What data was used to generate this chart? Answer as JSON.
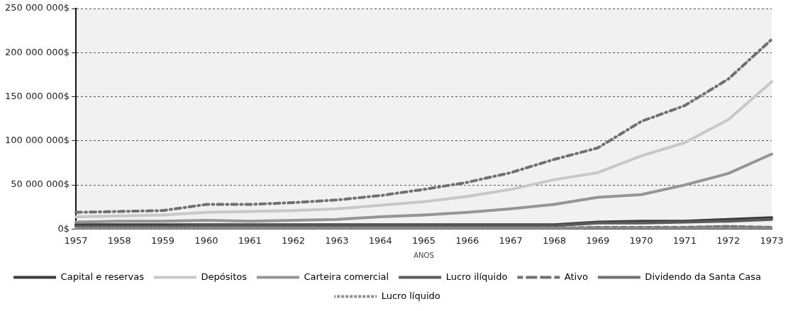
{
  "chart_data": {
    "type": "line",
    "xlabel": "ANOS",
    "categories": [
      "1957",
      "1958",
      "1959",
      "1960",
      "1961",
      "1962",
      "1963",
      "1964",
      "1965",
      "1966",
      "1967",
      "1968",
      "1969",
      "1970",
      "1971",
      "1972",
      "1973"
    ],
    "series": [
      {
        "name": "Capital e reservas",
        "color": "#3c3c3c",
        "line_style": "solid",
        "values": [
          5000000,
          5000000,
          5000000,
          5000000,
          5000000,
          5000000,
          5000000,
          5000000,
          5000000,
          5000000,
          5000000,
          5000000,
          8000000,
          9000000,
          9000000,
          11000000,
          13000000
        ]
      },
      {
        "name": "Depósitos",
        "color": "#c8c8c8",
        "line_style": "solid",
        "values": [
          14000000,
          15000000,
          16000000,
          19000000,
          20000000,
          21000000,
          23000000,
          27000000,
          31000000,
          37000000,
          45000000,
          56000000,
          64000000,
          83000000,
          98000000,
          124000000,
          167000000
        ]
      },
      {
        "name": "Carteira comercial",
        "color": "#959595",
        "line_style": "solid",
        "values": [
          8000000,
          9000000,
          9000000,
          10000000,
          9000000,
          10000000,
          11000000,
          14000000,
          16000000,
          19000000,
          23000000,
          28000000,
          36000000,
          39000000,
          50000000,
          63000000,
          85000000
        ]
      },
      {
        "name": "Lucro ilíquido",
        "color": "#5a5a5a",
        "line_style": "solid",
        "values": [
          3000000,
          3000000,
          3000000,
          4000000,
          4000000,
          4000000,
          4000000,
          4000000,
          4000000,
          4000000,
          4000000,
          4000000,
          7000000,
          7000000,
          8000000,
          9000000,
          11000000
        ]
      },
      {
        "name": "Ativo",
        "color": "#707070",
        "line_style": "dashdot",
        "values": [
          19000000,
          20000000,
          21000000,
          28000000,
          28000000,
          30000000,
          33000000,
          38000000,
          45000000,
          53000000,
          64000000,
          79000000,
          92000000,
          122000000,
          140000000,
          170000000,
          215000000
        ]
      },
      {
        "name": "Dividendo da Santa Casa",
        "color": "#707070",
        "line_style": "dashed",
        "values": [
          1000000,
          1000000,
          1000000,
          1000000,
          1000000,
          1000000,
          1000000,
          1000000,
          1000000,
          1000000,
          1000000,
          1000000,
          2000000,
          2000000,
          2000000,
          3000000,
          2000000
        ]
      },
      {
        "name": "Lucro líquido",
        "color": "#909090",
        "line_style": "dotted",
        "values": [
          1000000,
          1000000,
          1000000,
          1000000,
          1000000,
          1000000,
          1000000,
          1000000,
          1000000,
          1000000,
          1000000,
          1000000,
          1000000,
          1000000,
          1000000,
          1000000,
          1000000
        ]
      }
    ],
    "ylim": [
      0,
      250000000
    ],
    "yticks": [
      {
        "value": 0,
        "label": "0$"
      },
      {
        "value": 50000000,
        "label": "50 000 000$"
      },
      {
        "value": 100000000,
        "label": "100 000 000$"
      },
      {
        "value": 150000000,
        "label": "150 000 000$"
      },
      {
        "value": 200000000,
        "label": "200 000 000$"
      },
      {
        "value": 250000000,
        "label": "250 000 000$"
      }
    ],
    "grid": "y",
    "legend": "bottom",
    "marker": "none"
  }
}
